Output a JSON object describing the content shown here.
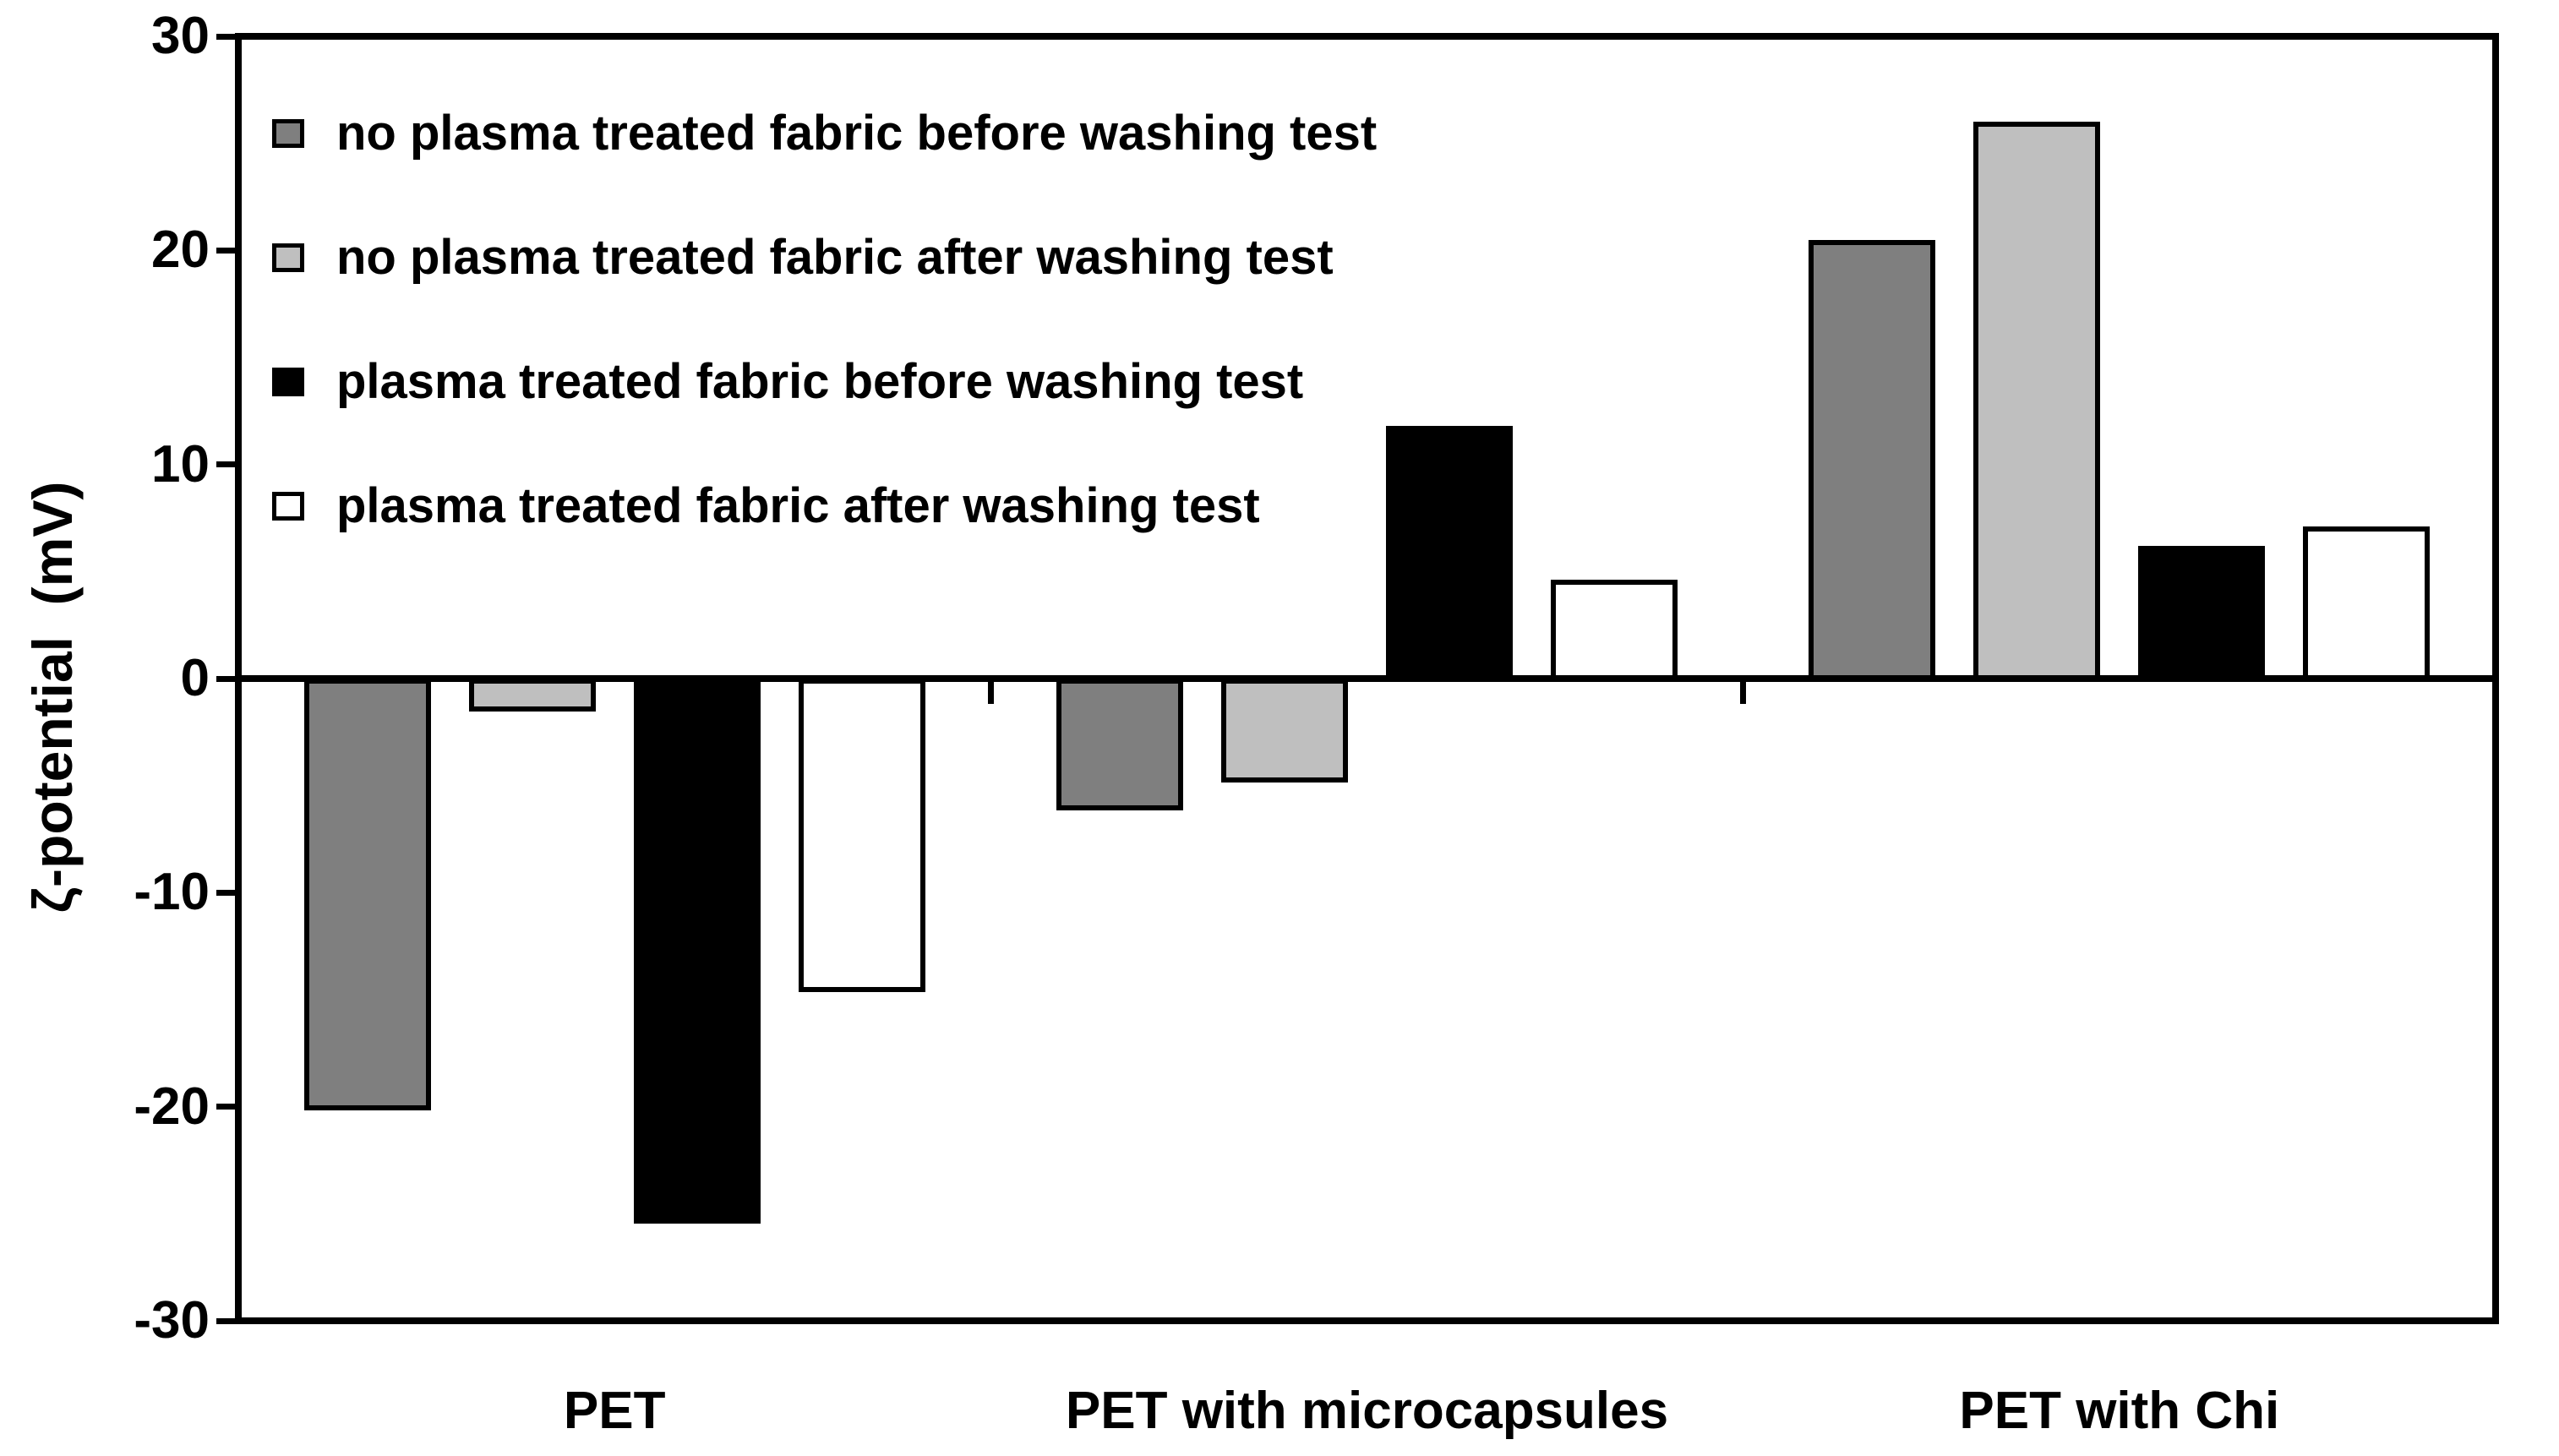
{
  "chart_data": {
    "type": "bar",
    "title": "",
    "ylabel": "ζ-potential  (mV)",
    "xlabel": "",
    "categories": [
      "PET",
      "PET with microcapsules",
      "PET with Chi"
    ],
    "series": [
      {
        "name": "no plasma treated fabric before washing test",
        "color": "#7f7f7f",
        "values": [
          -20.0,
          -6.0,
          20.5
        ]
      },
      {
        "name": "no plasma treated fabric after washing test",
        "color": "#bfbfbf",
        "values": [
          -1.4,
          -4.7,
          26.0
        ]
      },
      {
        "name": "plasma treated fabric before washing test",
        "color": "#000000",
        "values": [
          -25.3,
          11.8,
          6.2
        ]
      },
      {
        "name": "plasma treated fabric after washing test",
        "color": "#ffffff",
        "values": [
          -14.5,
          4.6,
          7.1
        ]
      }
    ],
    "ylim": [
      -30,
      30
    ],
    "yticks": [
      {
        "label": "30",
        "value": 30
      },
      {
        "label": "20",
        "value": 20
      },
      {
        "label": "10",
        "value": 10
      },
      {
        "label": "0",
        "value": 0
      },
      {
        "label": "-10",
        "value": -10
      },
      {
        "label": "-20",
        "value": -20
      },
      {
        "label": "-30",
        "value": -30
      }
    ],
    "grid": false,
    "legend_position": "top-left",
    "axis_color": "#000000",
    "background_color": "#ffffff"
  }
}
